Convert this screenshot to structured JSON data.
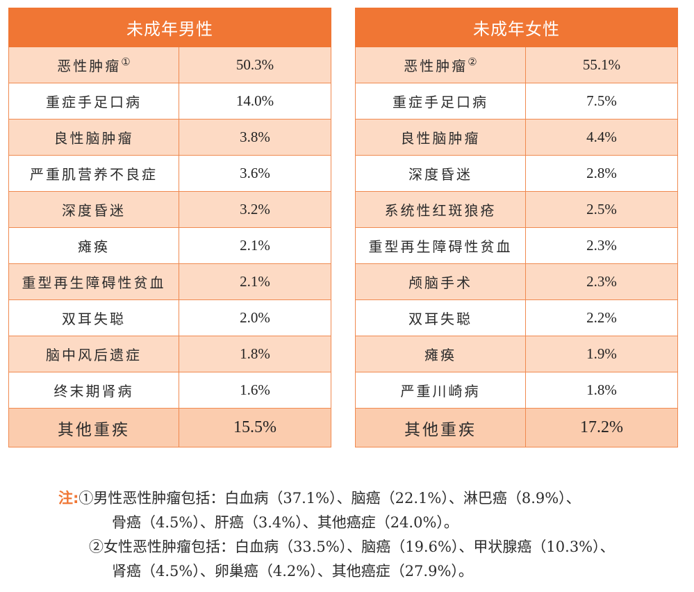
{
  "tables": [
    {
      "title": "未成年男性",
      "rows": [
        {
          "name": "恶性肿瘤",
          "mark": "①",
          "value": "50.3%"
        },
        {
          "name": "重症手足口病",
          "mark": "",
          "value": "14.0%"
        },
        {
          "name": "良性脑肿瘤",
          "mark": "",
          "value": "3.8%"
        },
        {
          "name": "严重肌营养不良症",
          "mark": "",
          "value": "3.6%"
        },
        {
          "name": "深度昏迷",
          "mark": "",
          "value": "3.2%"
        },
        {
          "name": "瘫痪",
          "mark": "",
          "value": "2.1%"
        },
        {
          "name": "重型再生障碍性贫血",
          "mark": "",
          "value": "2.1%"
        },
        {
          "name": "双耳失聪",
          "mark": "",
          "value": "2.0%"
        },
        {
          "name": "脑中风后遗症",
          "mark": "",
          "value": "1.8%"
        },
        {
          "name": "终末期肾病",
          "mark": "",
          "value": "1.6%"
        },
        {
          "name": "其他重疾",
          "mark": "",
          "value": "15.5%"
        }
      ]
    },
    {
      "title": "未成年女性",
      "rows": [
        {
          "name": "恶性肿瘤",
          "mark": "②",
          "value": "55.1%"
        },
        {
          "name": "重症手足口病",
          "mark": "",
          "value": "7.5%"
        },
        {
          "name": "良性脑肿瘤",
          "mark": "",
          "value": "4.4%"
        },
        {
          "name": "深度昏迷",
          "mark": "",
          "value": "2.8%"
        },
        {
          "name": "系统性红斑狼疮",
          "mark": "",
          "value": "2.5%"
        },
        {
          "name": "重型再生障碍性贫血",
          "mark": "",
          "value": "2.3%"
        },
        {
          "name": "颅脑手术",
          "mark": "",
          "value": "2.3%"
        },
        {
          "name": "双耳失聪",
          "mark": "",
          "value": "2.2%"
        },
        {
          "name": "瘫痪",
          "mark": "",
          "value": "1.9%"
        },
        {
          "name": "严重川崎病",
          "mark": "",
          "value": "1.8%"
        },
        {
          "name": "其他重疾",
          "mark": "",
          "value": "17.2%"
        }
      ]
    }
  ],
  "notes": {
    "label": "注:",
    "lines": [
      "①男性恶性肿瘤包括：白血病（37.1%）、脑癌（22.1%）、淋巴癌（8.9%）、",
      "骨癌（4.5%）、肝癌（3.4%）、其他癌症（24.0%）。",
      "②女性恶性肿瘤包括：白血病（33.5%）、脑癌（19.6%）、甲状腺癌（10.3%）、",
      "肾癌（4.5%）、卵巢癌（4.2%）、其他癌症（27.9%）。"
    ]
  },
  "colors": {
    "header": "#f07634",
    "row_shaded": "#fddac4",
    "row_other": "#fbccae",
    "border": "#f0894f",
    "note_label": "#f07634"
  }
}
